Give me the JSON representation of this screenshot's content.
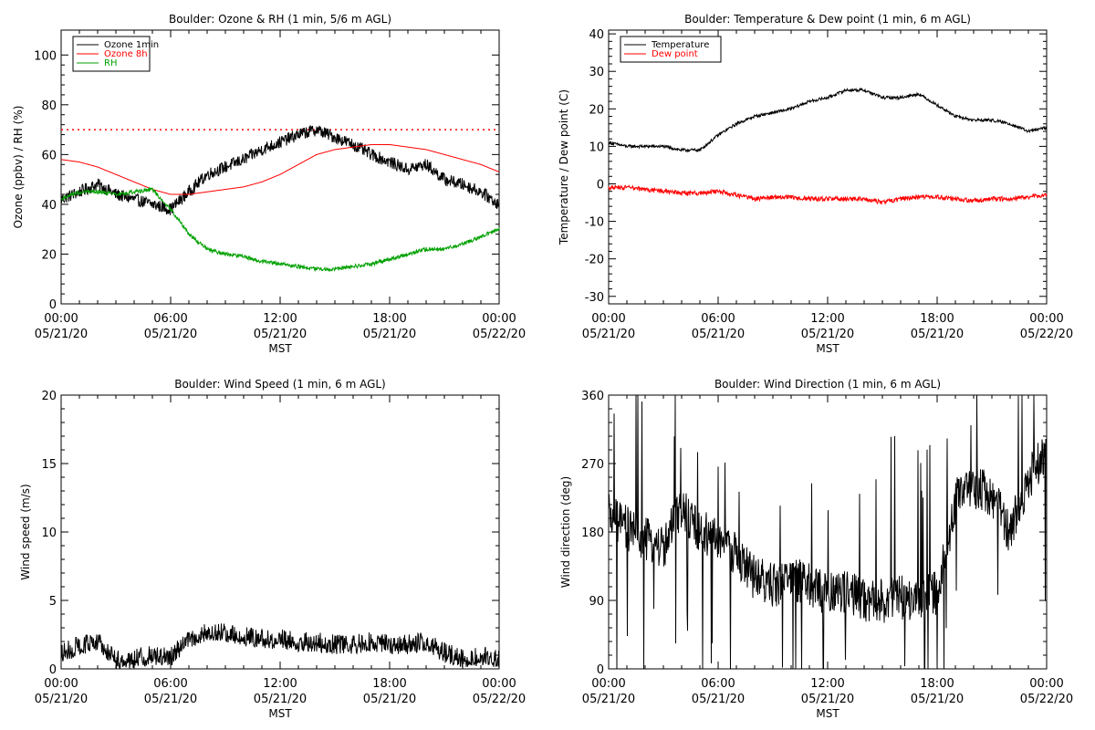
{
  "chart_data": [
    {
      "type": "line",
      "title": "Boulder: Ozone & RH (1 min, 5/6 m AGL)",
      "xlabel": "MST",
      "ylabel": "Ozone (ppbv) / RH (%)",
      "ylim": [
        0,
        110
      ],
      "yticks": [
        0,
        20,
        40,
        60,
        80,
        100
      ],
      "xlim": [
        0,
        24
      ],
      "xticks": [
        0,
        6,
        12,
        18,
        24
      ],
      "xtick_labels": [
        [
          "00:00",
          "05/21/20"
        ],
        [
          "06:00",
          "05/21/20"
        ],
        [
          "12:00",
          "05/21/20"
        ],
        [
          "18:00",
          "05/21/20"
        ],
        [
          "00:00",
          "05/22/20"
        ]
      ],
      "grid": false,
      "legend_position": "top-left",
      "reference_line": {
        "y": 70,
        "color": "#ff0000",
        "style": "dotted"
      },
      "series": [
        {
          "name": "Ozone 1min",
          "color": "#000000",
          "noise": 2.5,
          "x": [
            0,
            1,
            2,
            3,
            4,
            5,
            6,
            7,
            8,
            9,
            10,
            11,
            12,
            13,
            14,
            15,
            16,
            17,
            18,
            19,
            20,
            21,
            22,
            23,
            24
          ],
          "y": [
            42,
            45,
            48,
            44,
            42,
            40,
            38,
            45,
            52,
            55,
            58,
            62,
            65,
            68,
            70,
            67,
            64,
            60,
            57,
            54,
            56,
            50,
            48,
            45,
            40
          ]
        },
        {
          "name": "Ozone 8h",
          "color": "#ff0000",
          "noise": 0,
          "x": [
            0,
            1,
            2,
            3,
            4,
            5,
            6,
            7,
            8,
            9,
            10,
            11,
            12,
            13,
            14,
            15,
            16,
            17,
            18,
            19,
            20,
            21,
            22,
            23,
            24
          ],
          "y": [
            58,
            57,
            55,
            52,
            49,
            46,
            44,
            44,
            45,
            46,
            47,
            49,
            52,
            56,
            60,
            62,
            63,
            64,
            64,
            63,
            62,
            60,
            58,
            56,
            53
          ]
        },
        {
          "name": "RH",
          "color": "#00a000",
          "noise": 0.8,
          "x": [
            0,
            1,
            2,
            3,
            4,
            5,
            6,
            7,
            8,
            9,
            10,
            11,
            12,
            13,
            14,
            15,
            16,
            17,
            18,
            19,
            20,
            21,
            22,
            23,
            24
          ],
          "y": [
            42,
            45,
            45,
            44,
            45,
            46,
            38,
            28,
            22,
            20,
            19,
            17,
            16,
            15,
            14,
            14,
            15,
            16,
            18,
            20,
            22,
            22,
            24,
            27,
            30
          ]
        }
      ]
    },
    {
      "type": "line",
      "title": "Boulder: Temperature & Dew point (1 min, 6 m AGL)",
      "xlabel": "MST",
      "ylabel": "Temperature / Dew point (C)",
      "ylim": [
        -32,
        41
      ],
      "yticks": [
        -30,
        -20,
        -10,
        0,
        10,
        20,
        30,
        40
      ],
      "xlim": [
        0,
        24
      ],
      "xticks": [
        0,
        6,
        12,
        18,
        24
      ],
      "xtick_labels": [
        [
          "00:00",
          "05/21/20"
        ],
        [
          "06:00",
          "05/21/20"
        ],
        [
          "12:00",
          "05/21/20"
        ],
        [
          "18:00",
          "05/21/20"
        ],
        [
          "00:00",
          "05/22/20"
        ]
      ],
      "grid": false,
      "legend_position": "top-left",
      "series": [
        {
          "name": "Temperature",
          "color": "#000000",
          "noise": 0.4,
          "x": [
            0,
            1,
            2,
            3,
            4,
            5,
            6,
            7,
            8,
            9,
            10,
            11,
            12,
            13,
            14,
            15,
            16,
            17,
            18,
            19,
            20,
            21,
            22,
            23,
            24
          ],
          "y": [
            11,
            10,
            10,
            10,
            9,
            9,
            13,
            16,
            18,
            19,
            20,
            22,
            23,
            25,
            25,
            23,
            23,
            24,
            21,
            18,
            17,
            17,
            16,
            14,
            15
          ]
        },
        {
          "name": "Dew point",
          "color": "#ff0000",
          "noise": 0.6,
          "x": [
            0,
            1,
            2,
            3,
            4,
            5,
            6,
            7,
            8,
            9,
            10,
            11,
            12,
            13,
            14,
            15,
            16,
            17,
            18,
            19,
            20,
            21,
            22,
            23,
            24
          ],
          "y": [
            -1,
            -1,
            -1.5,
            -2,
            -2.5,
            -2.5,
            -2,
            -3,
            -4,
            -3.5,
            -3.5,
            -4,
            -4,
            -4,
            -4,
            -5,
            -4,
            -3.5,
            -3.5,
            -4,
            -4.5,
            -4,
            -4,
            -3.5,
            -3
          ]
        }
      ]
    },
    {
      "type": "line",
      "title": "Boulder: Wind Speed (1 min, 6 m AGL)",
      "xlabel": "MST",
      "ylabel": "Wind speed (m/s)",
      "ylim": [
        0,
        20
      ],
      "yticks": [
        0,
        5,
        10,
        15,
        20
      ],
      "xlim": [
        0,
        24
      ],
      "xticks": [
        0,
        6,
        12,
        18,
        24
      ],
      "xtick_labels": [
        [
          "00:00",
          "05/21/20"
        ],
        [
          "06:00",
          "05/21/20"
        ],
        [
          "12:00",
          "05/21/20"
        ],
        [
          "18:00",
          "05/21/20"
        ],
        [
          "00:00",
          "05/22/20"
        ]
      ],
      "grid": false,
      "series": [
        {
          "color": "#000000",
          "noise": 0.9,
          "x": [
            0,
            1,
            2,
            3,
            4,
            5,
            6,
            7,
            8,
            9,
            10,
            11,
            12,
            13,
            14,
            15,
            16,
            17,
            18,
            19,
            20,
            21,
            22,
            23,
            24
          ],
          "y": [
            1,
            1.5,
            1.8,
            0.5,
            0.6,
            0.8,
            0.7,
            2,
            2.5,
            2.5,
            2.2,
            2,
            2,
            1.8,
            1.8,
            1.6,
            1.6,
            1.8,
            1.6,
            1.6,
            1.8,
            1,
            0.6,
            0.8,
            0.5
          ]
        }
      ]
    },
    {
      "type": "line",
      "title": "Boulder: Wind Direction (1 min, 6 m AGL)",
      "xlabel": "MST",
      "ylabel": "Wind direction (deg)",
      "ylim": [
        0,
        360
      ],
      "yticks": [
        0,
        90,
        180,
        270,
        360
      ],
      "xlim": [
        0,
        24
      ],
      "xticks": [
        0,
        6,
        12,
        18,
        24
      ],
      "xtick_labels": [
        [
          "00:00",
          "05/21/20"
        ],
        [
          "06:00",
          "05/21/20"
        ],
        [
          "12:00",
          "05/21/20"
        ],
        [
          "18:00",
          "05/21/20"
        ],
        [
          "00:00",
          "05/22/20"
        ]
      ],
      "grid": false,
      "series": [
        {
          "color": "#000000",
          "noise": 30,
          "x": [
            0,
            1,
            2,
            3,
            4,
            5,
            6,
            7,
            8,
            9,
            10,
            11,
            12,
            13,
            14,
            15,
            16,
            17,
            18,
            19,
            20,
            21,
            22,
            23,
            24
          ],
          "y": [
            200,
            185,
            170,
            160,
            210,
            180,
            170,
            150,
            120,
            110,
            120,
            110,
            100,
            100,
            90,
            90,
            95,
            90,
            100,
            220,
            240,
            230,
            180,
            250,
            290
          ]
        }
      ]
    }
  ]
}
